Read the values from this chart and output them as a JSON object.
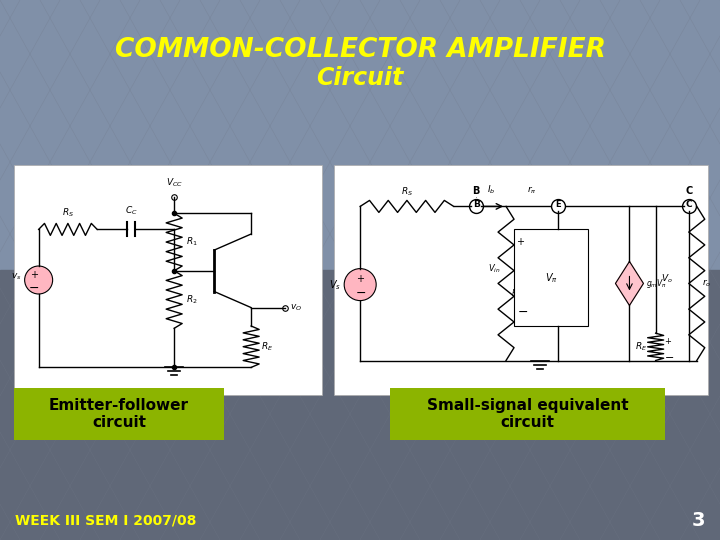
{
  "title_line1": "COMMON-COLLECTOR AMPLIFIER",
  "title_line2": "Circuit",
  "title_color": "#FFFF00",
  "title_fontsize": 19,
  "title_fontsize2": 17,
  "bg_top": "#8090A8",
  "bg_bottom": "#606878",
  "label1": "Emitter-follower\ncircuit",
  "label2": "Small-signal equivalent\ncircuit",
  "label_bg": "#8CB400",
  "label_text_color": "#000000",
  "label_fontsize": 11,
  "footer_text": "WEEK III SEM I 2007/08",
  "footer_color": "#FFFF00",
  "footer_fontsize": 10,
  "page_num": "3",
  "page_num_color": "#FFFFFF",
  "page_num_fontsize": 14
}
